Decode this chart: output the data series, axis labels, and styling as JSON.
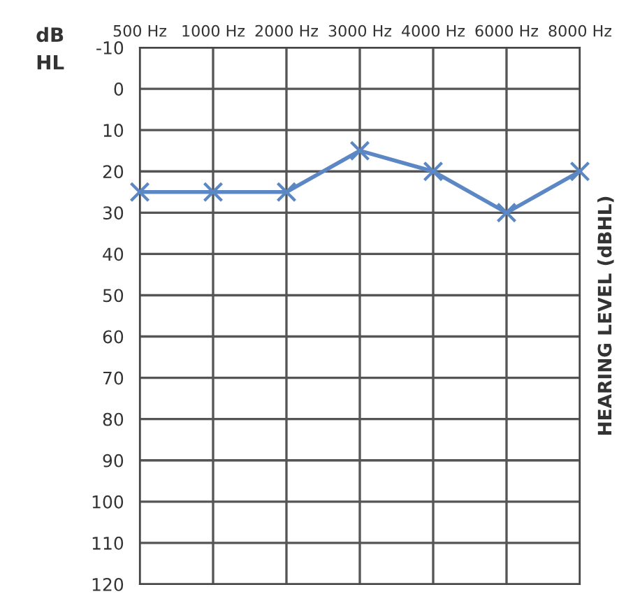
{
  "chart_data": {
    "type": "line",
    "ylabel": "dB HL",
    "y2label": "HEARING LEVEL (dBHL)",
    "categories": [
      "500 Hz",
      "1000 Hz",
      "2000 Hz",
      "3000 Hz",
      "4000 Hz",
      "6000 Hz",
      "8000 Hz"
    ],
    "series": [
      {
        "color": "#5b87c4",
        "values": [
          25,
          25,
          25,
          15,
          20,
          30,
          20
        ]
      }
    ],
    "ylim": [
      120,
      -10
    ],
    "yticks": [
      -10,
      0,
      10,
      20,
      30,
      40,
      50,
      60,
      70,
      80,
      90,
      100,
      110,
      120
    ],
    "grid": true,
    "marker": "cross",
    "line_style": "solid"
  }
}
